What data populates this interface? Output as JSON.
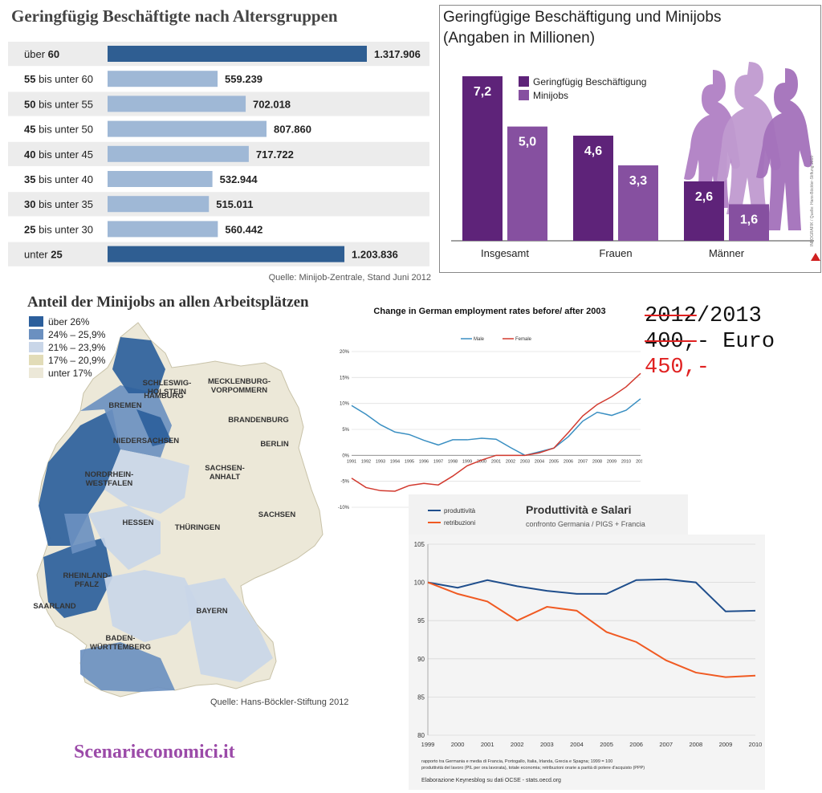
{
  "panel1": {
    "title": "Geringfügig Beschäftigte nach Altersgruppen",
    "source": "Quelle: Minijob-Zentrale, Stand Juni 2012",
    "chart_data": {
      "type": "bar",
      "orientation": "horizontal",
      "categories": [
        {
          "prefix": "über ",
          "bold": "60",
          "suffix": ""
        },
        {
          "prefix": "",
          "bold": "55",
          "suffix": " bis unter 60"
        },
        {
          "prefix": "",
          "bold": "50",
          "suffix": " bis unter 55"
        },
        {
          "prefix": "",
          "bold": "45",
          "suffix": " bis unter 50"
        },
        {
          "prefix": "",
          "bold": "40",
          "suffix": " bis unter 45"
        },
        {
          "prefix": "",
          "bold": "35",
          "suffix": " bis unter 40"
        },
        {
          "prefix": "",
          "bold": "30",
          "suffix": " bis unter 35"
        },
        {
          "prefix": "",
          "bold": "25",
          "suffix": " bis unter 30"
        },
        {
          "prefix": "unter ",
          "bold": "25",
          "suffix": ""
        }
      ],
      "values": [
        1317906,
        559239,
        702018,
        807860,
        717722,
        532944,
        515011,
        560442,
        1203836
      ],
      "value_labels": [
        "1.317.906",
        "559.239",
        "702.018",
        "807.860",
        "717.722",
        "532.944",
        "515.011",
        "560.442",
        "1.203.836"
      ],
      "highlight": [
        true,
        false,
        false,
        false,
        false,
        false,
        false,
        false,
        true
      ],
      "colors": {
        "highlight": "#2f5e92",
        "normal": "#9fb8d6",
        "stripe": "#ececec"
      }
    }
  },
  "panel2": {
    "title_line1": "Geringfügige Beschäftigung und Minijobs",
    "title_line2": "(Angaben in Millionen)",
    "side_text": "INFOGRAFIK / Quelle: Hans-Böckler-Stiftung 2010",
    "chart_data": {
      "type": "bar",
      "categories": [
        "Insgesamt",
        "Frauen",
        "Männer"
      ],
      "series": [
        {
          "name": "Geringfügig Beschäftigung",
          "values": [
            7.2,
            4.6,
            2.6
          ],
          "labels": [
            "7,2",
            "4,6",
            "2,6"
          ],
          "color": "#5e2379"
        },
        {
          "name": "Minijobs",
          "values": [
            5.0,
            3.3,
            1.6
          ],
          "labels": [
            "5,0",
            "3,3",
            "1,6"
          ],
          "color": "#8650a0"
        }
      ],
      "ylim": [
        0,
        7.2
      ]
    }
  },
  "panel3": {
    "title": "Anteil der Minijobs an allen Arbeitsplätzen",
    "source": "Quelle: Hans-Böckler-Stiftung 2012",
    "legend": [
      {
        "label": "über 26%",
        "color": "#2c5f9c"
      },
      {
        "label": "24% – 25,9%",
        "color": "#6b90c0"
      },
      {
        "label": "21% – 23,9%",
        "color": "#c9d6e8"
      },
      {
        "label": "17% – 20,9%",
        "color": "#e2dcb8"
      },
      {
        "label": "unter 17%",
        "color": "#ece8d8"
      }
    ],
    "regions": [
      {
        "name": "SCHLESWIG-\nHOLSTEIN"
      },
      {
        "name": "MECKLENBURG-\nVORPOMMERN"
      },
      {
        "name": "HAMBURG"
      },
      {
        "name": "BREMEN"
      },
      {
        "name": "BRANDENBURG"
      },
      {
        "name": "BERLIN"
      },
      {
        "name": "NIEDERSACHSEN"
      },
      {
        "name": "SACHSEN-\nANHALT"
      },
      {
        "name": "NORDRHEIN-\nWESTFALEN"
      },
      {
        "name": "SACHSEN"
      },
      {
        "name": "HESSEN"
      },
      {
        "name": "THÜRINGEN"
      },
      {
        "name": "RHEINLAND-\nPFALZ"
      },
      {
        "name": "SAARLAND"
      },
      {
        "name": "BAYERN"
      },
      {
        "name": "BADEN-\nWÜRTTEMBERG"
      }
    ]
  },
  "panel4": {
    "chart_data": {
      "type": "line",
      "title": "Change in German employment rates before/ after 2003",
      "x": [
        1991,
        1992,
        1993,
        1994,
        1995,
        1996,
        1997,
        1998,
        1999,
        2000,
        2001,
        2002,
        2003,
        2004,
        2005,
        2006,
        2007,
        2008,
        2009,
        2010,
        2011
      ],
      "series": [
        {
          "name": "Male",
          "color": "#3a8fc2",
          "values": [
            9.6,
            7.9,
            5.9,
            4.5,
            4.0,
            2.9,
            2.0,
            3.0,
            3.0,
            3.3,
            3.1,
            1.5,
            0.0,
            0.7,
            1.4,
            3.6,
            6.6,
            8.3,
            7.7,
            8.7,
            10.9
          ]
        },
        {
          "name": "Female",
          "color": "#d23a2f",
          "values": [
            -4.4,
            -6.2,
            -6.8,
            -6.9,
            -5.8,
            -5.4,
            -5.7,
            -4.0,
            -2.0,
            -0.9,
            0.0,
            0.0,
            0.0,
            0.5,
            1.4,
            4.4,
            7.6,
            9.8,
            11.3,
            13.2,
            15.8
          ]
        }
      ],
      "y_ticks": [
        "20%",
        "15%",
        "10%",
        "5%",
        "0%",
        "-5%",
        "-10%"
      ],
      "ylim": [
        -10,
        20
      ]
    }
  },
  "panel5": {
    "line1_struck": "2012",
    "line1_rest": "/2013",
    "line2_struck": "400,",
    "line2_rest": "- Euro",
    "line3": "450,-"
  },
  "panel6": {
    "chart_data": {
      "type": "line",
      "title": "Produttività e Salari",
      "subtitle": "confronto Germania / PIGS + Francia",
      "x": [
        1999,
        2000,
        2001,
        2002,
        2003,
        2004,
        2005,
        2006,
        2007,
        2008,
        2009,
        2010
      ],
      "series": [
        {
          "name": "produttività",
          "color": "#1f4e8c",
          "values": [
            100.0,
            99.3,
            100.3,
            99.5,
            98.9,
            98.5,
            98.5,
            100.3,
            100.4,
            100.0,
            96.2,
            96.3
          ]
        },
        {
          "name": "retribuzioni",
          "color": "#f05a22",
          "values": [
            100.0,
            98.5,
            97.5,
            95.0,
            96.8,
            96.3,
            93.5,
            92.2,
            89.8,
            88.2,
            87.6,
            87.8
          ]
        }
      ],
      "ylim": [
        80,
        105
      ],
      "y_ticks": [
        105,
        100,
        95,
        90,
        85,
        80
      ],
      "footnote1": "rapporto tra Germania e media di Francia, Portogallo, Italia, Irlanda, Grecia e Spagna; 1999 = 100",
      "footnote2": "produttività del lavoro (PIL per ora lavorata), totale economia; retribuzioni orarie a parità di potere d'acquisto (PPP)",
      "footnote3": "Elaborazione Keynesblog su dati OCSE - stats.oecd.org"
    }
  },
  "brand": "Scenarieconomici.it"
}
